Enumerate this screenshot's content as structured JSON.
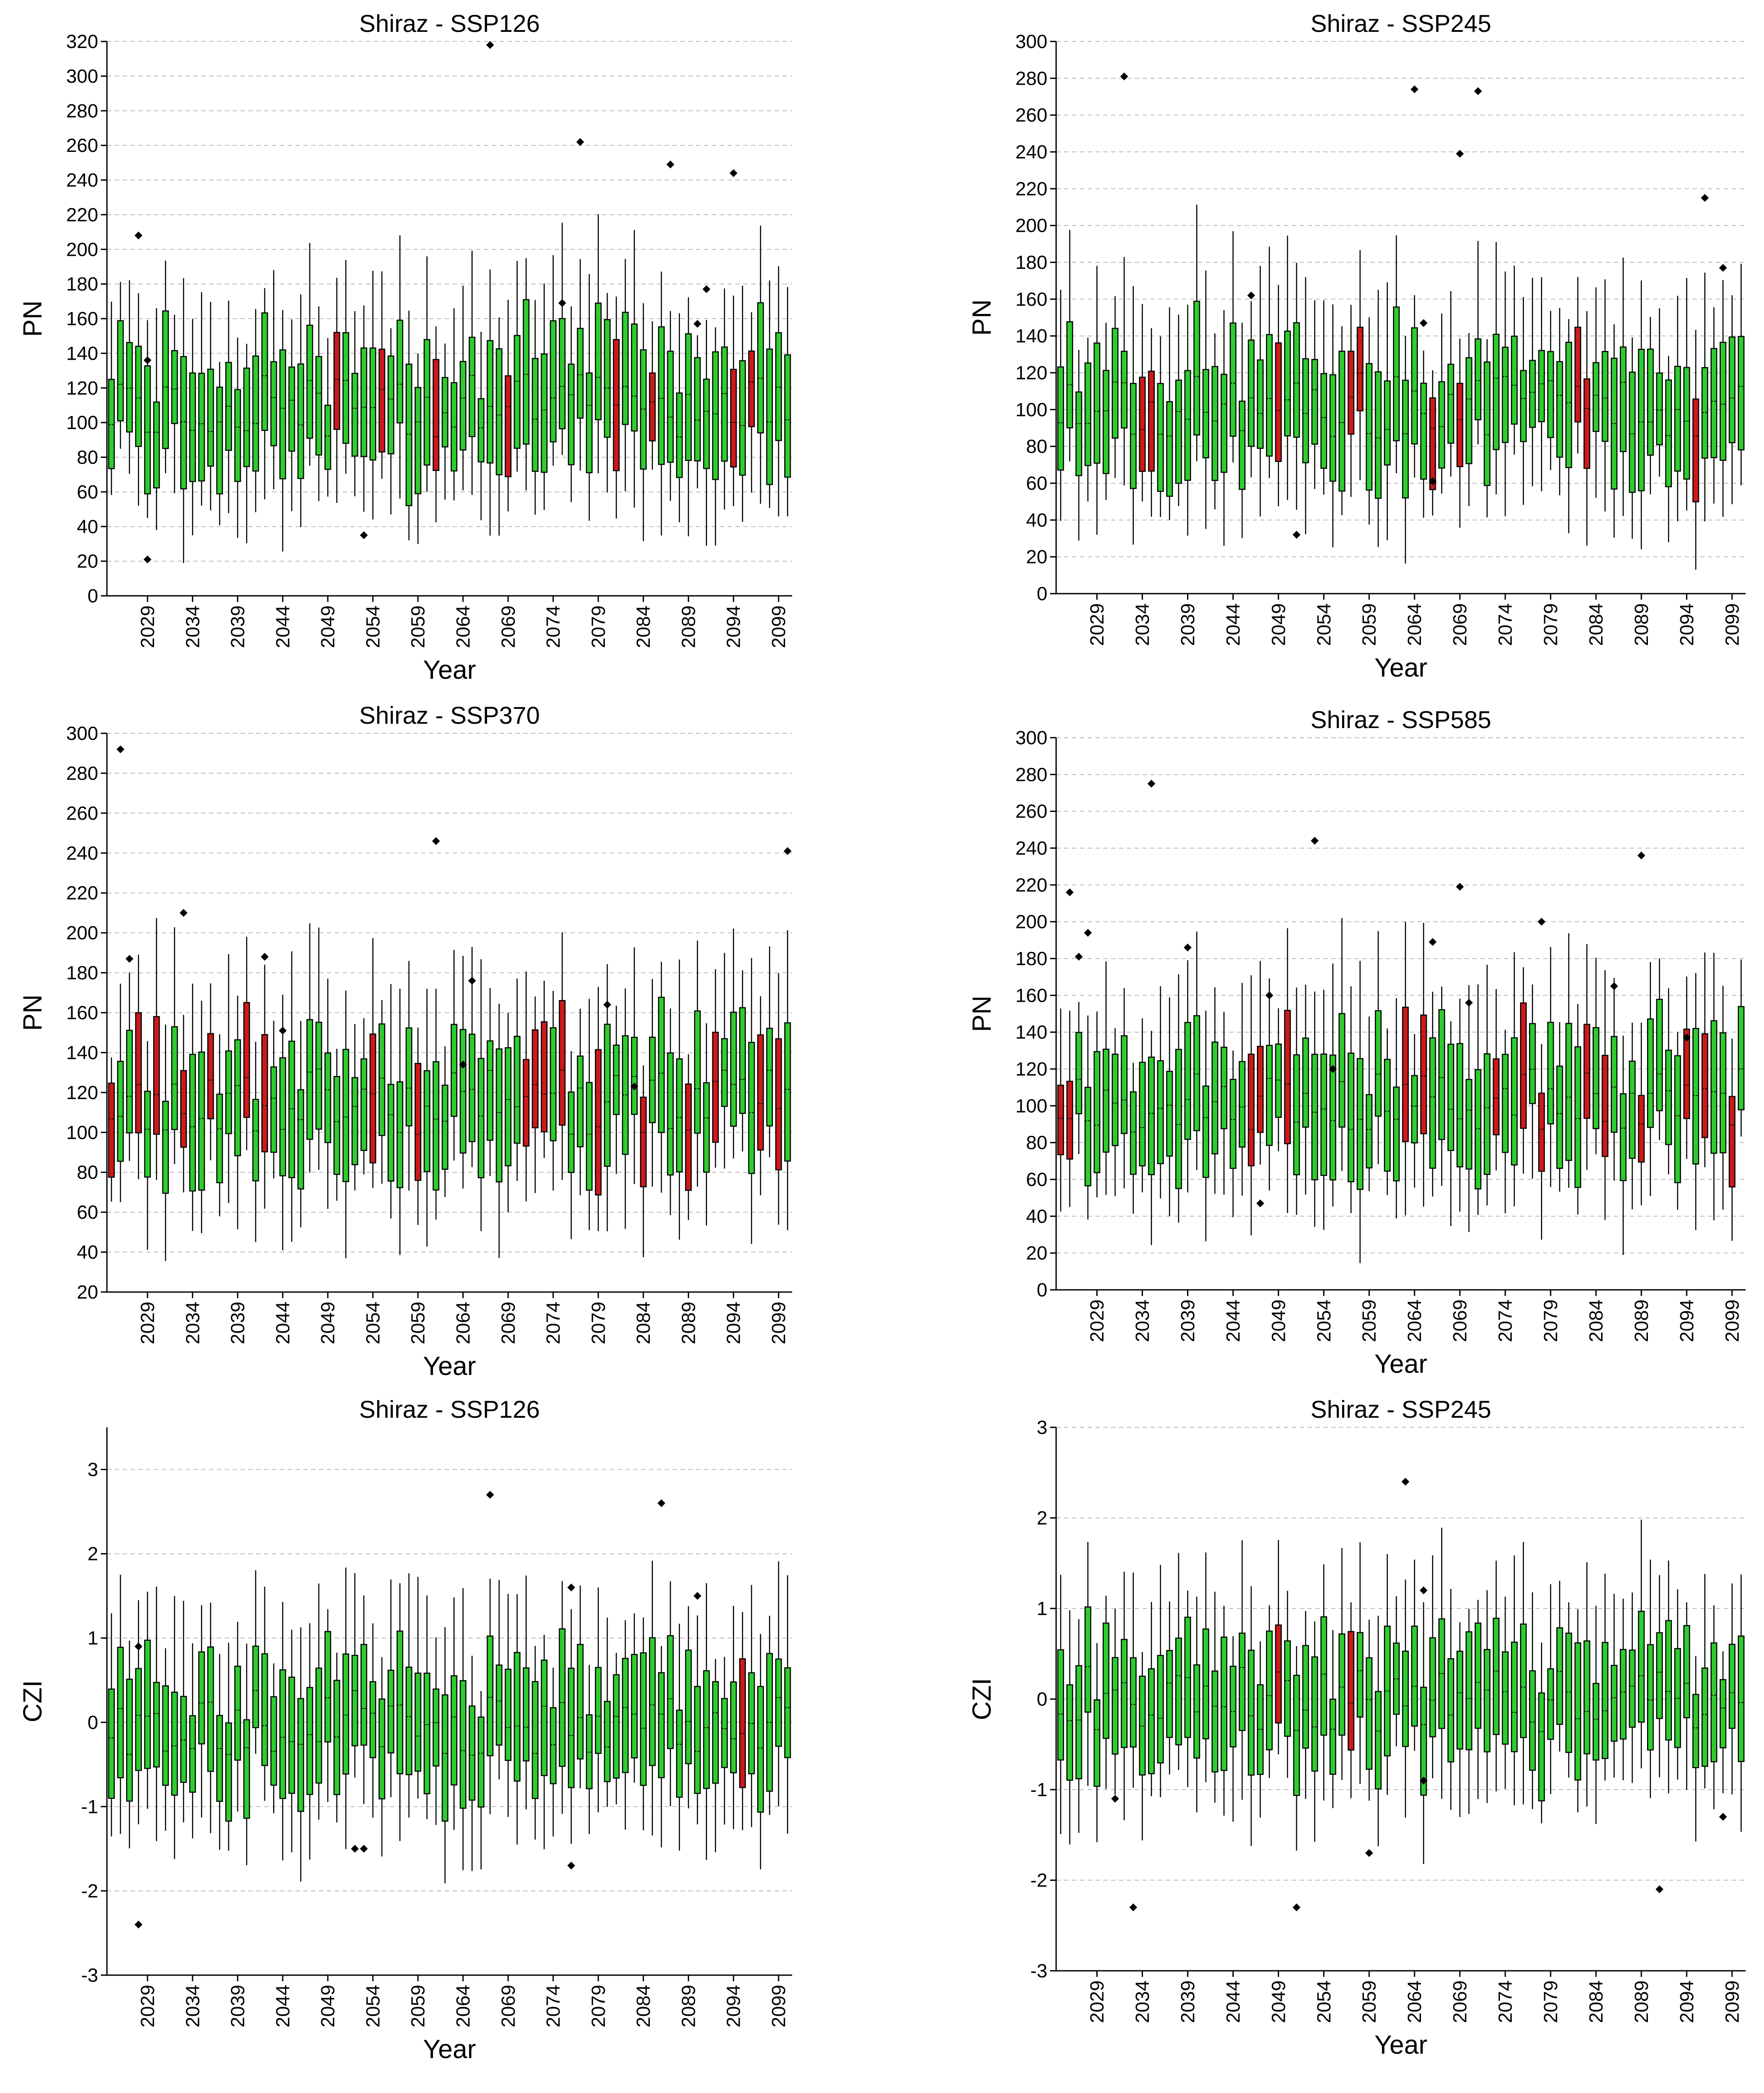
{
  "colors": {
    "green_box": "#2ecc2e",
    "red_box": "#cc1a1a",
    "grid": "#bdbdbd",
    "axis": "#000000"
  },
  "chart_data": [
    {
      "type": "box",
      "title": "Shiraz - SSP126",
      "xlabel": "Year",
      "ylabel": "PN",
      "ylim": [
        0,
        320
      ],
      "yticks": [
        0,
        20,
        40,
        60,
        80,
        100,
        120,
        140,
        160,
        180,
        200,
        220,
        240,
        260,
        280,
        300,
        320
      ],
      "x_range": [
        2025,
        2100
      ],
      "xtick_labels": [
        "2029",
        "2034",
        "2039",
        "2044",
        "2049",
        "2054",
        "2059",
        "2064",
        "2069",
        "2074",
        "2079",
        "2084",
        "2089",
        "2094",
        "2099"
      ],
      "red_years": [
        2050,
        2055,
        2061,
        2069,
        2081,
        2085,
        2094,
        2096
      ],
      "outliers": [
        [
          2028,
          208
        ],
        [
          2029,
          136
        ],
        [
          2029,
          21
        ],
        [
          2053,
          35
        ],
        [
          2067,
          318
        ],
        [
          2075,
          169
        ],
        [
          2077,
          262
        ],
        [
          2087,
          249
        ],
        [
          2090,
          157
        ],
        [
          2091,
          177
        ],
        [
          2094,
          244
        ]
      ],
      "seed": 11
    },
    {
      "type": "box",
      "title": "Shiraz - SSP245",
      "xlabel": "Year",
      "ylabel": "PN",
      "ylim": [
        0,
        300
      ],
      "yticks": [
        0,
        20,
        40,
        60,
        80,
        100,
        120,
        140,
        160,
        180,
        200,
        220,
        240,
        260,
        280,
        300
      ],
      "x_range": [
        2025,
        2100
      ],
      "xtick_labels": [
        "2029",
        "2034",
        "2039",
        "2044",
        "2049",
        "2054",
        "2059",
        "2064",
        "2069",
        "2074",
        "2079",
        "2084",
        "2089",
        "2094",
        "2099"
      ],
      "red_years": [
        2034,
        2035,
        2049,
        2057,
        2058,
        2066,
        2069,
        2082,
        2083,
        2095
      ],
      "outliers": [
        [
          2032,
          281
        ],
        [
          2046,
          162
        ],
        [
          2051,
          32
        ],
        [
          2064,
          274
        ],
        [
          2065,
          147
        ],
        [
          2066,
          61
        ],
        [
          2069,
          239
        ],
        [
          2071,
          273
        ],
        [
          2096,
          215
        ],
        [
          2098,
          177
        ]
      ],
      "seed": 23
    },
    {
      "type": "box",
      "title": "Shiraz - SSP370",
      "xlabel": "Year",
      "ylabel": "PN",
      "ylim": [
        20,
        300
      ],
      "yticks": [
        20,
        40,
        60,
        80,
        100,
        120,
        140,
        160,
        180,
        200,
        220,
        240,
        260,
        280,
        300
      ],
      "x_range": [
        2025,
        2100
      ],
      "xtick_labels": [
        "2029",
        "2034",
        "2039",
        "2044",
        "2049",
        "2054",
        "2059",
        "2064",
        "2069",
        "2074",
        "2079",
        "2084",
        "2089",
        "2094",
        "2099"
      ],
      "red_years": [
        2025,
        2028,
        2030,
        2033,
        2036,
        2040,
        2042,
        2054,
        2059,
        2071,
        2072,
        2073,
        2075,
        2079,
        2084,
        2089,
        2092,
        2097,
        2099
      ],
      "outliers": [
        [
          2026,
          292
        ],
        [
          2027,
          187
        ],
        [
          2033,
          210
        ],
        [
          2042,
          188
        ],
        [
          2044,
          151
        ],
        [
          2061,
          246
        ],
        [
          2064,
          134
        ],
        [
          2065,
          176
        ],
        [
          2080,
          164
        ],
        [
          2083,
          123
        ],
        [
          2100,
          241
        ]
      ],
      "seed": 37
    },
    {
      "type": "box",
      "title": "Shiraz - SSP585",
      "xlabel": "Year",
      "ylabel": "PN",
      "ylim": [
        0,
        300
      ],
      "yticks": [
        0,
        20,
        40,
        60,
        80,
        100,
        120,
        140,
        160,
        180,
        200,
        220,
        240,
        260,
        280,
        300
      ],
      "x_range": [
        2025,
        2100
      ],
      "xtick_labels": [
        "2029",
        "2034",
        "2039",
        "2044",
        "2049",
        "2054",
        "2059",
        "2064",
        "2069",
        "2074",
        "2079",
        "2084",
        "2089",
        "2094",
        "2099"
      ],
      "red_years": [
        2025,
        2026,
        2046,
        2047,
        2050,
        2063,
        2065,
        2073,
        2076,
        2078,
        2083,
        2085,
        2089,
        2094,
        2096,
        2099
      ],
      "outliers": [
        [
          2026,
          216
        ],
        [
          2027,
          181
        ],
        [
          2028,
          194
        ],
        [
          2035,
          275
        ],
        [
          2039,
          186
        ],
        [
          2047,
          47
        ],
        [
          2048,
          160
        ],
        [
          2053,
          244
        ],
        [
          2055,
          120
        ],
        [
          2066,
          189
        ],
        [
          2069,
          219
        ],
        [
          2070,
          156
        ],
        [
          2078,
          200
        ],
        [
          2086,
          165
        ],
        [
          2089,
          236
        ],
        [
          2094,
          137
        ]
      ],
      "seed": 53
    },
    {
      "type": "box",
      "title": "Shiraz - SSP126",
      "xlabel": "Year",
      "ylabel": "CZI",
      "ylim": [
        -3,
        3.5
      ],
      "yticks": [
        -3,
        -2,
        -1,
        0,
        1,
        2,
        3
      ],
      "x_range": [
        2025,
        2100
      ],
      "xtick_labels": [
        "2029",
        "2034",
        "2039",
        "2044",
        "2049",
        "2054",
        "2059",
        "2064",
        "2069",
        "2074",
        "2079",
        "2084",
        "2089",
        "2094",
        "2099"
      ],
      "red_years": [
        2095
      ],
      "outliers": [
        [
          2028,
          0.9
        ],
        [
          2028,
          -2.4
        ],
        [
          2052,
          -1.5
        ],
        [
          2053,
          -1.5
        ],
        [
          2067,
          2.7
        ],
        [
          2076,
          1.6
        ],
        [
          2076,
          -1.7
        ],
        [
          2086,
          2.6
        ],
        [
          2090,
          1.5
        ]
      ],
      "seed": 71
    },
    {
      "type": "box",
      "title": "Shiraz - SSP245",
      "xlabel": "Year",
      "ylabel": "CZI",
      "ylim": [
        -3,
        3
      ],
      "yticks": [
        -3,
        -2,
        -1,
        0,
        1,
        2,
        3
      ],
      "x_range": [
        2025,
        2100
      ],
      "xtick_labels": [
        "2029",
        "2034",
        "2039",
        "2044",
        "2049",
        "2054",
        "2059",
        "2064",
        "2069",
        "2074",
        "2079",
        "2084",
        "2089",
        "2094",
        "2099"
      ],
      "red_years": [
        2049,
        2057
      ],
      "outliers": [
        [
          2031,
          -1.1
        ],
        [
          2033,
          -2.3
        ],
        [
          2051,
          -2.3
        ],
        [
          2059,
          -1.7
        ],
        [
          2063,
          2.4
        ],
        [
          2065,
          1.2
        ],
        [
          2065,
          -0.9
        ],
        [
          2091,
          -2.1
        ],
        [
          2098,
          -1.3
        ]
      ],
      "seed": 89
    }
  ]
}
